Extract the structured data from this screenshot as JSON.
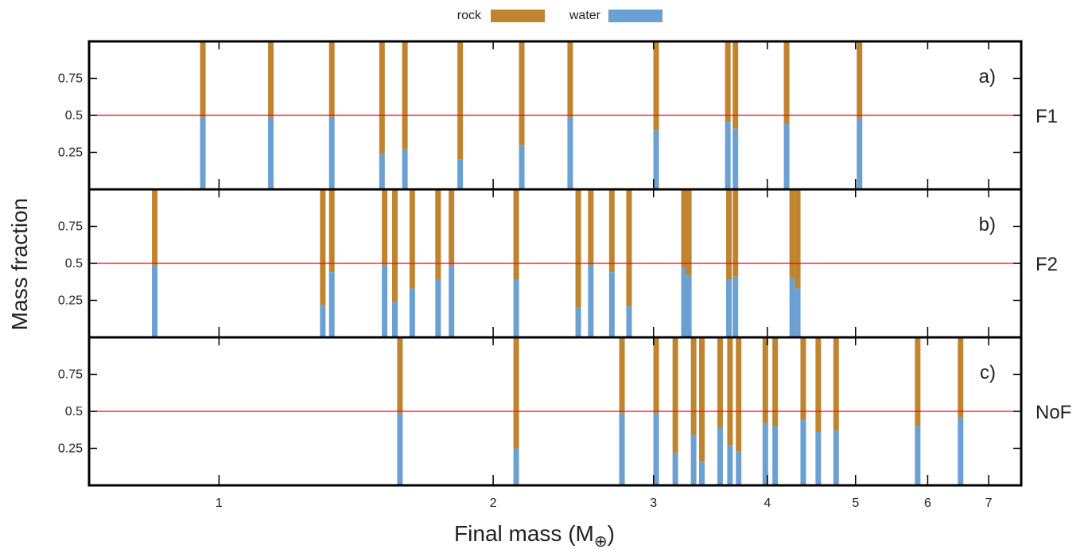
{
  "colors": {
    "rock": "#c0842f",
    "water": "#6aa0d2",
    "half_line": "#ff0000",
    "frame": "#000000"
  },
  "chart_data": {
    "type": "bar",
    "xlabel": "Final mass (M",
    "xlabel_sub": "⊕",
    "xlabel_close": ")",
    "ylabel": "Mass fraction",
    "xscale": "log",
    "xlim": [
      0.72,
      7.6
    ],
    "ylim": [
      0,
      1
    ],
    "xticks": [
      1,
      2,
      3,
      4,
      5,
      6,
      7
    ],
    "yticks": [
      "0.25",
      "0.5",
      "0.75"
    ],
    "ytick_values": [
      0.25,
      0.5,
      0.75
    ],
    "reference_line": 0.5,
    "legend": {
      "position": "top-center",
      "entries": [
        "rock",
        "water"
      ]
    },
    "panels": [
      {
        "letter": "a)",
        "name": "F1",
        "bars": [
          {
            "mass": 0.96,
            "water": 0.49
          },
          {
            "mass": 1.14,
            "water": 0.49
          },
          {
            "mass": 1.33,
            "water": 0.49
          },
          {
            "mass": 1.51,
            "water": 0.24
          },
          {
            "mass": 1.6,
            "water": 0.27
          },
          {
            "mass": 1.84,
            "water": 0.2
          },
          {
            "mass": 2.15,
            "water": 0.3
          },
          {
            "mass": 2.43,
            "water": 0.49
          },
          {
            "mass": 3.02,
            "water": 0.4
          },
          {
            "mass": 3.62,
            "water": 0.46
          },
          {
            "mass": 3.69,
            "water": 0.41
          },
          {
            "mass": 4.2,
            "water": 0.44
          },
          {
            "mass": 5.05,
            "water": 0.48
          }
        ]
      },
      {
        "letter": "b)",
        "name": "F2",
        "bars": [
          {
            "mass": 0.85,
            "water": 0.49
          },
          {
            "mass": 1.3,
            "water": 0.22
          },
          {
            "mass": 1.33,
            "water": 0.44
          },
          {
            "mass": 1.52,
            "water": 0.49
          },
          {
            "mass": 1.56,
            "water": 0.24
          },
          {
            "mass": 1.63,
            "water": 0.33
          },
          {
            "mass": 1.74,
            "water": 0.39
          },
          {
            "mass": 1.8,
            "water": 0.49
          },
          {
            "mass": 2.12,
            "water": 0.39
          },
          {
            "mass": 2.48,
            "water": 0.2
          },
          {
            "mass": 2.56,
            "water": 0.49
          },
          {
            "mass": 2.7,
            "water": 0.44
          },
          {
            "mass": 2.82,
            "water": 0.21
          },
          {
            "mass": 3.24,
            "water": 0.47
          },
          {
            "mass": 3.28,
            "water": 0.42
          },
          {
            "mass": 3.63,
            "water": 0.39
          },
          {
            "mass": 3.69,
            "water": 0.41
          },
          {
            "mass": 4.26,
            "water": 0.4
          },
          {
            "mass": 4.32,
            "water": 0.33
          }
        ]
      },
      {
        "letter": "c)",
        "name": "NoF",
        "bars": [
          {
            "mass": 1.58,
            "water": 0.49
          },
          {
            "mass": 2.12,
            "water": 0.25
          },
          {
            "mass": 2.77,
            "water": 0.49
          },
          {
            "mass": 3.02,
            "water": 0.49
          },
          {
            "mass": 3.17,
            "water": 0.22
          },
          {
            "mass": 3.32,
            "water": 0.34
          },
          {
            "mass": 3.39,
            "water": 0.16
          },
          {
            "mass": 3.55,
            "water": 0.39
          },
          {
            "mass": 3.64,
            "water": 0.27
          },
          {
            "mass": 3.72,
            "water": 0.23
          },
          {
            "mass": 3.98,
            "water": 0.42
          },
          {
            "mass": 4.08,
            "water": 0.4
          },
          {
            "mass": 4.38,
            "water": 0.44
          },
          {
            "mass": 4.55,
            "water": 0.36
          },
          {
            "mass": 4.76,
            "water": 0.37
          },
          {
            "mass": 5.85,
            "water": 0.4
          },
          {
            "mass": 6.52,
            "water": 0.46
          }
        ]
      }
    ]
  }
}
